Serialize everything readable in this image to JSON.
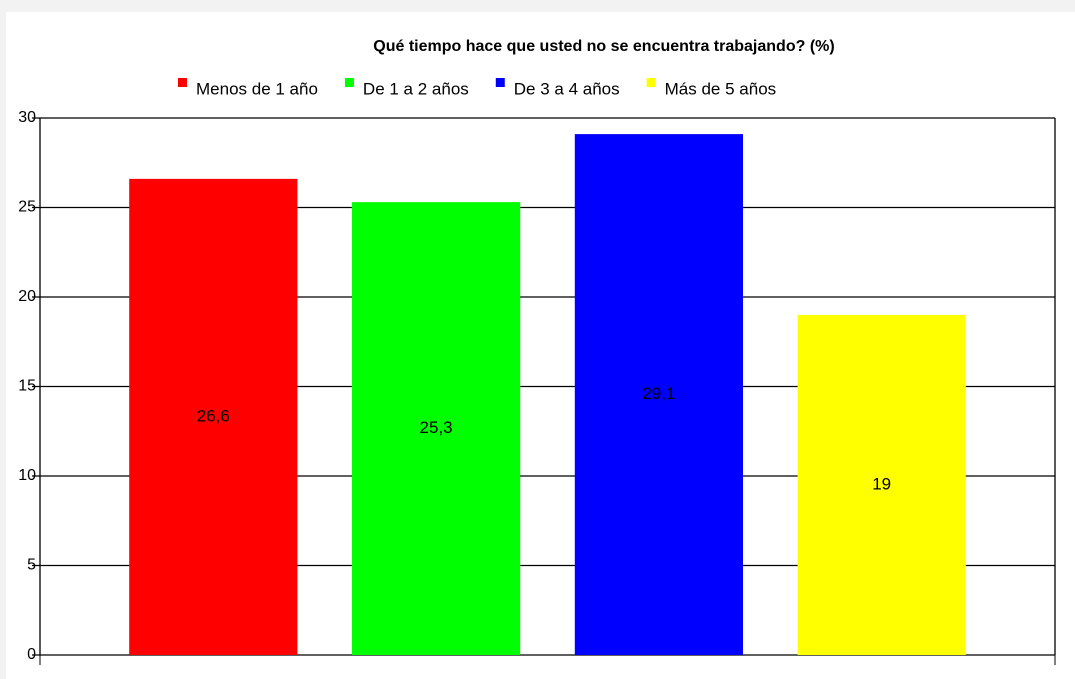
{
  "chart_data": {
    "type": "bar",
    "title": "Qué tiempo hace que usted no se encuentra trabajando? (%)",
    "categories": [
      null
    ],
    "series": [
      {
        "name": "Menos de 1 año",
        "color": "#ff0000",
        "values": [
          26.6
        ],
        "value_labels": [
          "26,6"
        ]
      },
      {
        "name": "De 1 a 2 años",
        "color": "#00ff00",
        "values": [
          25.3
        ],
        "value_labels": [
          "25,3"
        ]
      },
      {
        "name": "De 3 a 4 años",
        "color": "#0000ff",
        "values": [
          29.1
        ],
        "value_labels": [
          "29,1"
        ]
      },
      {
        "name": "Más de 5 años",
        "color": "#ffff00",
        "values": [
          19
        ]
      }
    ],
    "ylim": [
      0,
      30
    ],
    "yticks": [
      0,
      5,
      10,
      15,
      20,
      25,
      30
    ],
    "grid": true,
    "legend": "top"
  }
}
